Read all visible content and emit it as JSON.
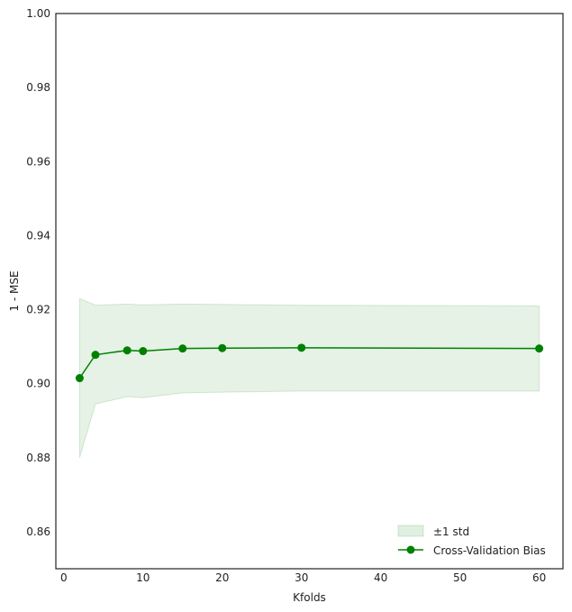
{
  "chart_data": {
    "type": "line",
    "xlabel": "Kfolds",
    "ylabel": "1 - MSE",
    "xlim": [
      -1,
      63
    ],
    "ylim": [
      0.85,
      1.0
    ],
    "xticks": [
      0,
      10,
      20,
      30,
      40,
      50,
      60
    ],
    "yticks": [
      0.86,
      0.88,
      0.9,
      0.92,
      0.94,
      0.96,
      0.98,
      1.0
    ],
    "ytick_format": 2,
    "grid": false,
    "legend_placement": "lower-right",
    "series": [
      {
        "name": "Cross-Validation Bias",
        "color": "#008000",
        "marker": "circle",
        "x": [
          2,
          4,
          8,
          10,
          15,
          20,
          30,
          60
        ],
        "y": [
          0.9015,
          0.9078,
          0.909,
          0.9088,
          0.9095,
          0.9096,
          0.9097,
          0.9095
        ]
      }
    ],
    "band": {
      "name": "±1 std",
      "color": "#008000",
      "x": [
        2,
        4,
        8,
        10,
        15,
        20,
        30,
        60
      ],
      "lower": [
        0.88,
        0.8945,
        0.8965,
        0.8962,
        0.8975,
        0.8977,
        0.898,
        0.898
      ],
      "upper": [
        0.923,
        0.9212,
        0.9215,
        0.9213,
        0.9215,
        0.9214,
        0.9212,
        0.921
      ]
    }
  }
}
